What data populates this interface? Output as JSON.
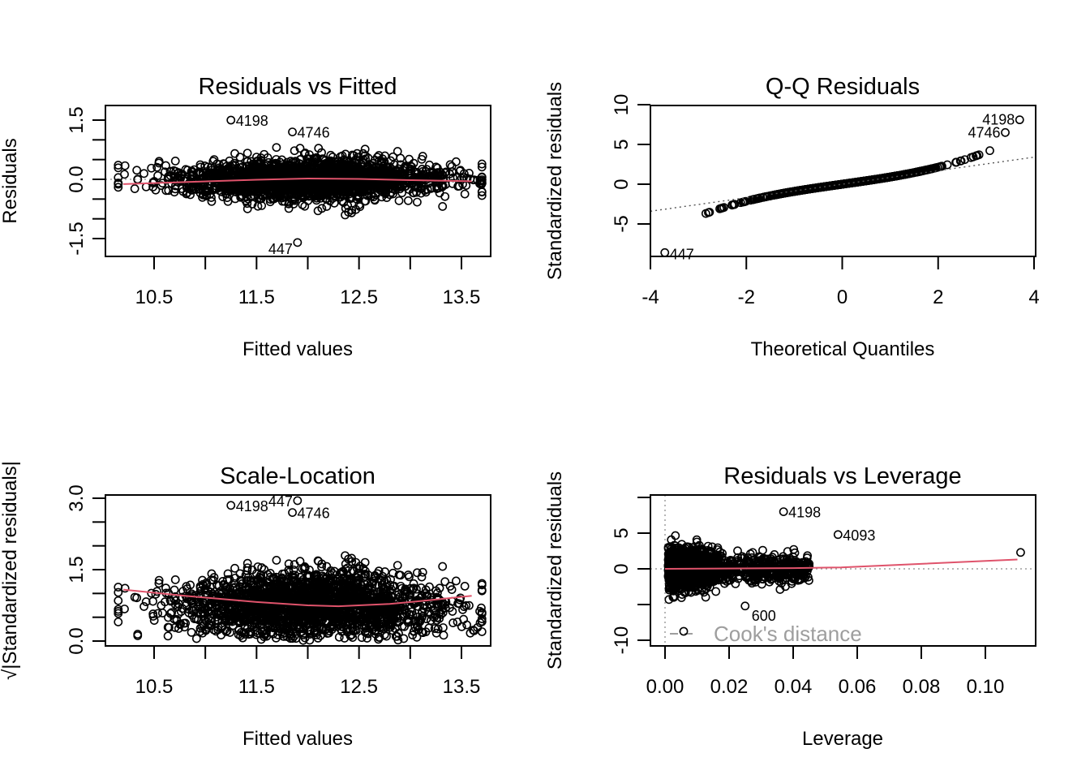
{
  "colors": {
    "points": "#000000",
    "smoother": "#DF536B",
    "reference": "#9E9E9E",
    "legend_text": "#9E9E9E"
  },
  "chart_data": [
    {
      "type": "scatter",
      "title": "Residuals vs Fitted",
      "xlabel": "Fitted values",
      "ylabel": "Residuals",
      "xlim": [
        10.0,
        13.8
      ],
      "ylim": [
        -1.85,
        1.75
      ],
      "x_ticks": [
        "10.5",
        "11.5",
        "12.5",
        "13.5"
      ],
      "y_ticks": [
        "-1.5",
        "0.0",
        "1.5"
      ],
      "reference_line": {
        "y": 0,
        "style": "dotted"
      },
      "smoother": {
        "x": [
          10.2,
          10.8,
          11.5,
          12.0,
          12.5,
          13.0,
          13.6
        ],
        "y": [
          -0.12,
          -0.07,
          -0.01,
          0.02,
          0.01,
          -0.02,
          -0.05
        ]
      },
      "labeled_points": [
        {
          "label": "4198",
          "x": 11.25,
          "y": 1.5
        },
        {
          "label": "4746",
          "x": 11.85,
          "y": 1.2
        },
        {
          "label": "447",
          "x": 11.9,
          "y": -1.6
        }
      ]
    },
    {
      "type": "scatter",
      "title": "Q-Q Residuals",
      "xlabel": "Theoretical Quantiles",
      "ylabel": "Standardized residuals",
      "xlim": [
        -4,
        4
      ],
      "ylim": [
        -9.3,
        10
      ],
      "x_ticks": [
        "-4",
        "-2",
        "0",
        "2",
        "4"
      ],
      "y_ticks": [
        "-5",
        "0",
        "5",
        "10"
      ],
      "reference_line": {
        "intercept": 0,
        "slope": 0.85,
        "style": "dotted"
      },
      "labeled_points": [
        {
          "label": "4198",
          "x": 3.7,
          "y": 8.1
        },
        {
          "label": "4746",
          "x": 3.4,
          "y": 6.5
        },
        {
          "label": "447",
          "x": -3.7,
          "y": -8.6
        }
      ]
    },
    {
      "type": "scatter",
      "title": "Scale-Location",
      "xlabel": "Fitted values",
      "ylabel": "√|Standardized residuals|",
      "xlim": [
        10.0,
        13.8
      ],
      "ylim": [
        -0.1,
        3.05
      ],
      "x_ticks": [
        "10.5",
        "11.5",
        "12.5",
        "13.5"
      ],
      "y_ticks": [
        "0.0",
        "1.5",
        "3.0"
      ],
      "smoother": {
        "x": [
          10.2,
          10.8,
          11.5,
          12.0,
          12.3,
          12.8,
          13.2,
          13.6
        ],
        "y": [
          1.08,
          0.95,
          0.82,
          0.75,
          0.73,
          0.78,
          0.86,
          0.95
        ]
      },
      "labeled_points": [
        {
          "label": "4198",
          "x": 11.25,
          "y": 2.85
        },
        {
          "label": "447",
          "x": 11.9,
          "y": 2.95
        },
        {
          "label": "4746",
          "x": 11.85,
          "y": 2.7
        }
      ]
    },
    {
      "type": "scatter",
      "title": "Residuals vs Leverage",
      "xlabel": "Leverage",
      "ylabel": "Standardized residuals",
      "xlim": [
        -0.005,
        0.116
      ],
      "ylim": [
        -10.7,
        10.2
      ],
      "x_ticks": [
        "0.00",
        "0.02",
        "0.04",
        "0.06",
        "0.08",
        "0.10"
      ],
      "y_ticks": [
        "-10",
        "0",
        "5"
      ],
      "smoother": {
        "x": [
          0.0,
          0.04,
          0.055,
          0.11
        ],
        "y": [
          0.0,
          0.1,
          0.2,
          1.3
        ]
      },
      "legend": {
        "label": "Cook's distance",
        "position": "bottom-left"
      },
      "labeled_points": [
        {
          "label": "4198",
          "x": 0.037,
          "y": 8.0
        },
        {
          "label": "4093",
          "x": 0.054,
          "y": 4.8
        },
        {
          "label": "600",
          "x": 0.025,
          "y": -5.2
        }
      ],
      "extra_points": [
        {
          "x": 0.111,
          "y": 2.3
        }
      ]
    }
  ]
}
